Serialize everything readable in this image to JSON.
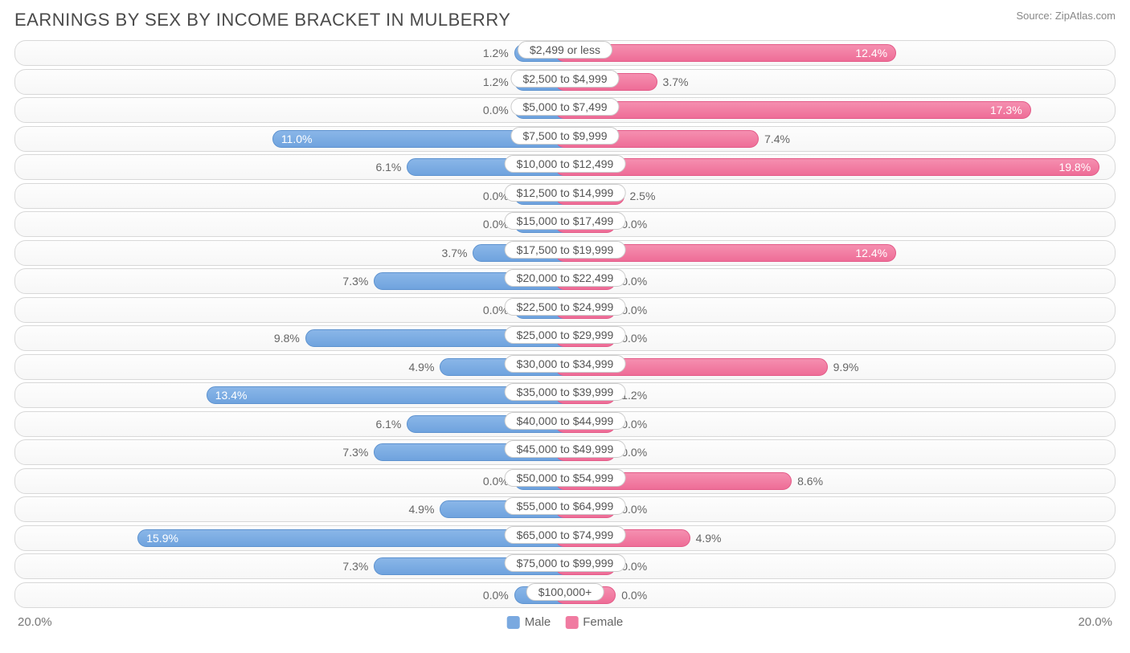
{
  "title": "EARNINGS BY SEX BY INCOME BRACKET IN MULBERRY",
  "source": "Source: ZipAtlas.com",
  "chart": {
    "type": "diverging-bar",
    "max_pct": 20.0,
    "axis_left_label": "20.0%",
    "axis_right_label": "20.0%",
    "male_color": "#7aa9e0",
    "male_border": "#5d92cf",
    "female_color": "#f07ba1",
    "female_border": "#e35a87",
    "row_bg": "#fafafa",
    "row_border": "#d8d8d8",
    "label_text_color": "#555",
    "value_inside_threshold": 10.5,
    "min_bar_pct": 2.2,
    "rows": [
      {
        "category": "$2,499 or less",
        "male": 1.2,
        "female": 12.4
      },
      {
        "category": "$2,500 to $4,999",
        "male": 1.2,
        "female": 3.7
      },
      {
        "category": "$5,000 to $7,499",
        "male": 0.0,
        "female": 17.3
      },
      {
        "category": "$7,500 to $9,999",
        "male": 11.0,
        "female": 7.4
      },
      {
        "category": "$10,000 to $12,499",
        "male": 6.1,
        "female": 19.8
      },
      {
        "category": "$12,500 to $14,999",
        "male": 0.0,
        "female": 2.5
      },
      {
        "category": "$15,000 to $17,499",
        "male": 0.0,
        "female": 0.0
      },
      {
        "category": "$17,500 to $19,999",
        "male": 3.7,
        "female": 12.4
      },
      {
        "category": "$20,000 to $22,499",
        "male": 7.3,
        "female": 0.0
      },
      {
        "category": "$22,500 to $24,999",
        "male": 0.0,
        "female": 0.0
      },
      {
        "category": "$25,000 to $29,999",
        "male": 9.8,
        "female": 0.0
      },
      {
        "category": "$30,000 to $34,999",
        "male": 4.9,
        "female": 9.9
      },
      {
        "category": "$35,000 to $39,999",
        "male": 13.4,
        "female": 1.2
      },
      {
        "category": "$40,000 to $44,999",
        "male": 6.1,
        "female": 0.0
      },
      {
        "category": "$45,000 to $49,999",
        "male": 7.3,
        "female": 0.0
      },
      {
        "category": "$50,000 to $54,999",
        "male": 0.0,
        "female": 8.6
      },
      {
        "category": "$55,000 to $64,999",
        "male": 4.9,
        "female": 0.0
      },
      {
        "category": "$65,000 to $74,999",
        "male": 15.9,
        "female": 4.9
      },
      {
        "category": "$75,000 to $99,999",
        "male": 7.3,
        "female": 0.0
      },
      {
        "category": "$100,000+",
        "male": 0.0,
        "female": 0.0
      }
    ],
    "legend": {
      "male_label": "Male",
      "female_label": "Female"
    }
  }
}
